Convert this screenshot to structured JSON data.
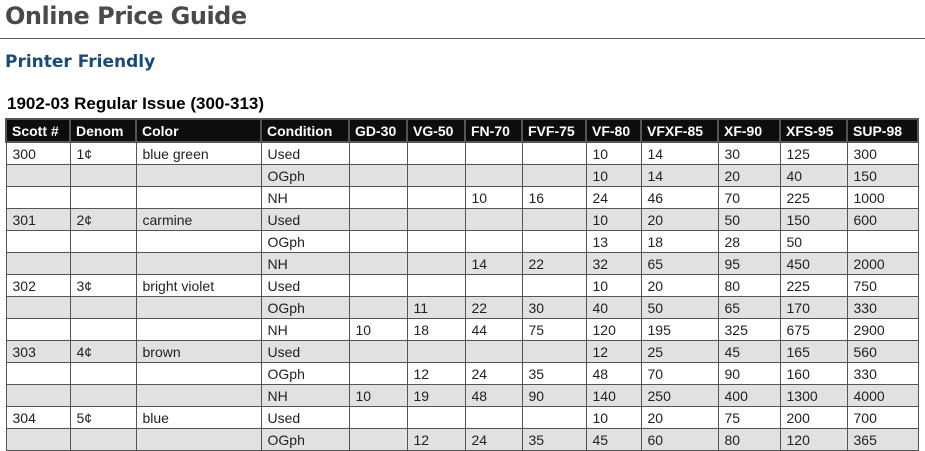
{
  "page": {
    "title": "Online Price Guide",
    "printer_friendly": "Printer Friendly",
    "section_title": "1902-03 Regular Issue (300-313)"
  },
  "table": {
    "headers": [
      "Scott #",
      "Denom",
      "Color",
      "Condition",
      "GD-30",
      "VG-50",
      "FN-70",
      "FVF-75",
      "VF-80",
      "VFXF-85",
      "XF-90",
      "XFS-95",
      "SUP-98"
    ],
    "rows": [
      [
        "300",
        "1¢",
        "blue green",
        "Used",
        "",
        "",
        "",
        "",
        "10",
        "14",
        "30",
        "125",
        "300"
      ],
      [
        "",
        "",
        "",
        "OGph",
        "",
        "",
        "",
        "",
        "10",
        "14",
        "20",
        "40",
        "150"
      ],
      [
        "",
        "",
        "",
        "NH",
        "",
        "",
        "10",
        "16",
        "24",
        "46",
        "70",
        "225",
        "1000"
      ],
      [
        "301",
        "2¢",
        "carmine",
        "Used",
        "",
        "",
        "",
        "",
        "10",
        "20",
        "50",
        "150",
        "600"
      ],
      [
        "",
        "",
        "",
        "OGph",
        "",
        "",
        "",
        "",
        "13",
        "18",
        "28",
        "50",
        ""
      ],
      [
        "",
        "",
        "",
        "NH",
        "",
        "",
        "14",
        "22",
        "32",
        "65",
        "95",
        "450",
        "2000"
      ],
      [
        "302",
        "3¢",
        "bright violet",
        "Used",
        "",
        "",
        "",
        "",
        "10",
        "20",
        "80",
        "225",
        "750"
      ],
      [
        "",
        "",
        "",
        "OGph",
        "",
        "11",
        "22",
        "30",
        "40",
        "50",
        "65",
        "170",
        "330"
      ],
      [
        "",
        "",
        "",
        "NH",
        "10",
        "18",
        "44",
        "75",
        "120",
        "195",
        "325",
        "675",
        "2900"
      ],
      [
        "303",
        "4¢",
        "brown",
        "Used",
        "",
        "",
        "",
        "",
        "12",
        "25",
        "45",
        "165",
        "560"
      ],
      [
        "",
        "",
        "",
        "OGph",
        "",
        "12",
        "24",
        "35",
        "48",
        "70",
        "90",
        "160",
        "330"
      ],
      [
        "",
        "",
        "",
        "NH",
        "10",
        "19",
        "48",
        "90",
        "140",
        "250",
        "400",
        "1300",
        "4000"
      ],
      [
        "304",
        "5¢",
        "blue",
        "Used",
        "",
        "",
        "",
        "",
        "10",
        "20",
        "75",
        "200",
        "700"
      ],
      [
        "",
        "",
        "",
        "OGph",
        "",
        "12",
        "24",
        "35",
        "45",
        "60",
        "80",
        "120",
        "365"
      ]
    ]
  }
}
